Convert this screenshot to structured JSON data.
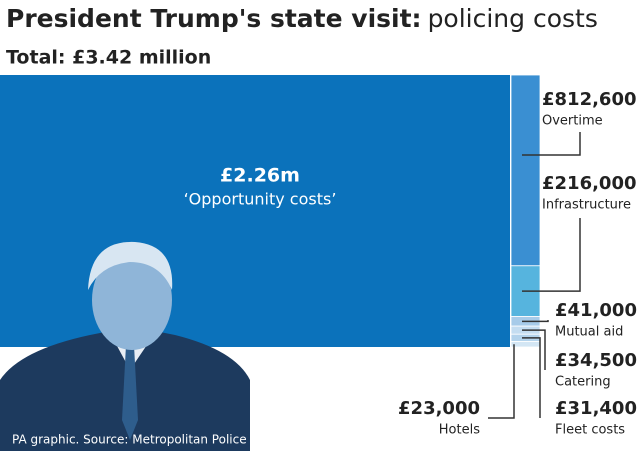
{
  "chart_data": {
    "type": "treemap",
    "title": [
      "President Trump's state visit:",
      "policing costs"
    ],
    "subtitle": "Total: £3.42 million",
    "source": "PA graphic. Source: Metropolitan Police",
    "categories": [
      "‘Opportunity costs’",
      "Overtime",
      "Infrastructure",
      "Mutual aid",
      "Catering",
      "Fleet costs",
      "Hotels"
    ],
    "values": [
      2260000,
      812600,
      216000,
      41000,
      34500,
      31400,
      23000
    ],
    "value_labels": [
      "£2.26m",
      "£812,600",
      "£216,000",
      "£41,000",
      "£34,500",
      "£31,400",
      "£23,000"
    ],
    "colors": [
      "#0b72bb",
      "#3a8fd2",
      "#56b4de",
      "#a7cbe9",
      "#c4ddf1",
      "#b3d3ec",
      "#d3e6f4"
    ]
  }
}
